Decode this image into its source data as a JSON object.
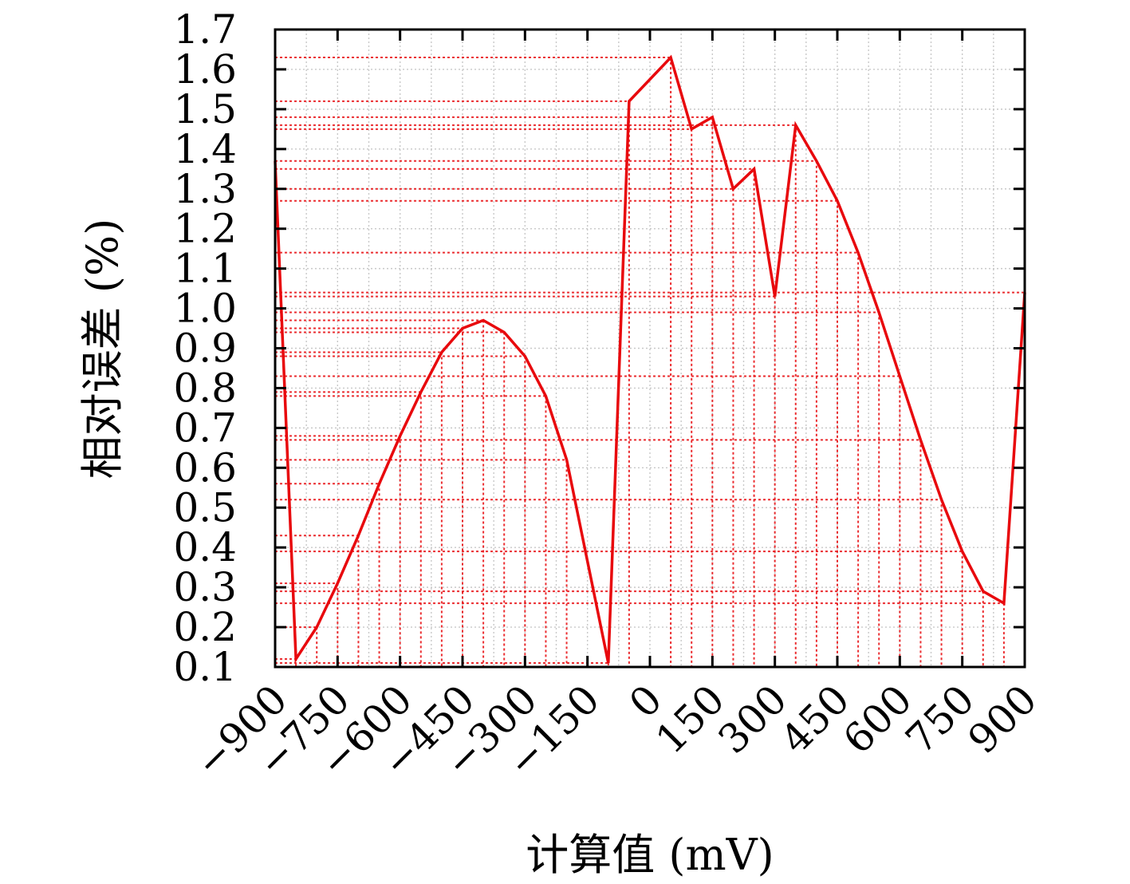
{
  "chart_data": {
    "type": "line",
    "xlabel": "计算值 (mV)",
    "ylabel": "相对误差 (%)",
    "xlim": [
      -900,
      900
    ],
    "ylim": [
      0.1,
      1.7
    ],
    "xticks": [
      "−900",
      "−750",
      "−600",
      "−450",
      "−300",
      "−150",
      "0",
      "150",
      "300",
      "450",
      "600",
      "750",
      "900"
    ],
    "yticks": [
      "0.1",
      "0.2",
      "0.3",
      "0.4",
      "0.5",
      "0.6",
      "0.7",
      "0.8",
      "0.9",
      "1.0",
      "1.1",
      "1.2",
      "1.3",
      "1.4",
      "1.5",
      "1.6",
      "1.7"
    ],
    "xtick_values": [
      -900,
      -750,
      -600,
      -450,
      -300,
      -150,
      0,
      150,
      300,
      450,
      600,
      750,
      900
    ],
    "ytick_values": [
      0.1,
      0.2,
      0.3,
      0.4,
      0.5,
      0.6,
      0.7,
      0.8,
      0.9,
      1.0,
      1.1,
      1.2,
      1.3,
      1.4,
      1.5,
      1.6,
      1.7
    ],
    "grid": true,
    "series": [
      {
        "color": "#e8090d",
        "x": [
          -900,
          -850,
          -800,
          -750,
          -700,
          -650,
          -600,
          -550,
          -500,
          -450,
          -400,
          -350,
          -300,
          -250,
          -200,
          -100,
          -50,
          50,
          100,
          150,
          200,
          250,
          300,
          350,
          400,
          450,
          500,
          550,
          600,
          650,
          700,
          750,
          800,
          850,
          900
        ],
        "y": [
          1.37,
          0.12,
          0.2,
          0.31,
          0.43,
          0.56,
          0.68,
          0.79,
          0.89,
          0.95,
          0.97,
          0.94,
          0.88,
          0.78,
          0.62,
          0.11,
          1.52,
          1.63,
          1.45,
          1.48,
          1.3,
          1.35,
          1.03,
          1.46,
          1.37,
          1.27,
          1.14,
          0.99,
          0.83,
          0.67,
          0.52,
          0.39,
          0.29,
          0.26,
          1.04
        ]
      }
    ]
  }
}
